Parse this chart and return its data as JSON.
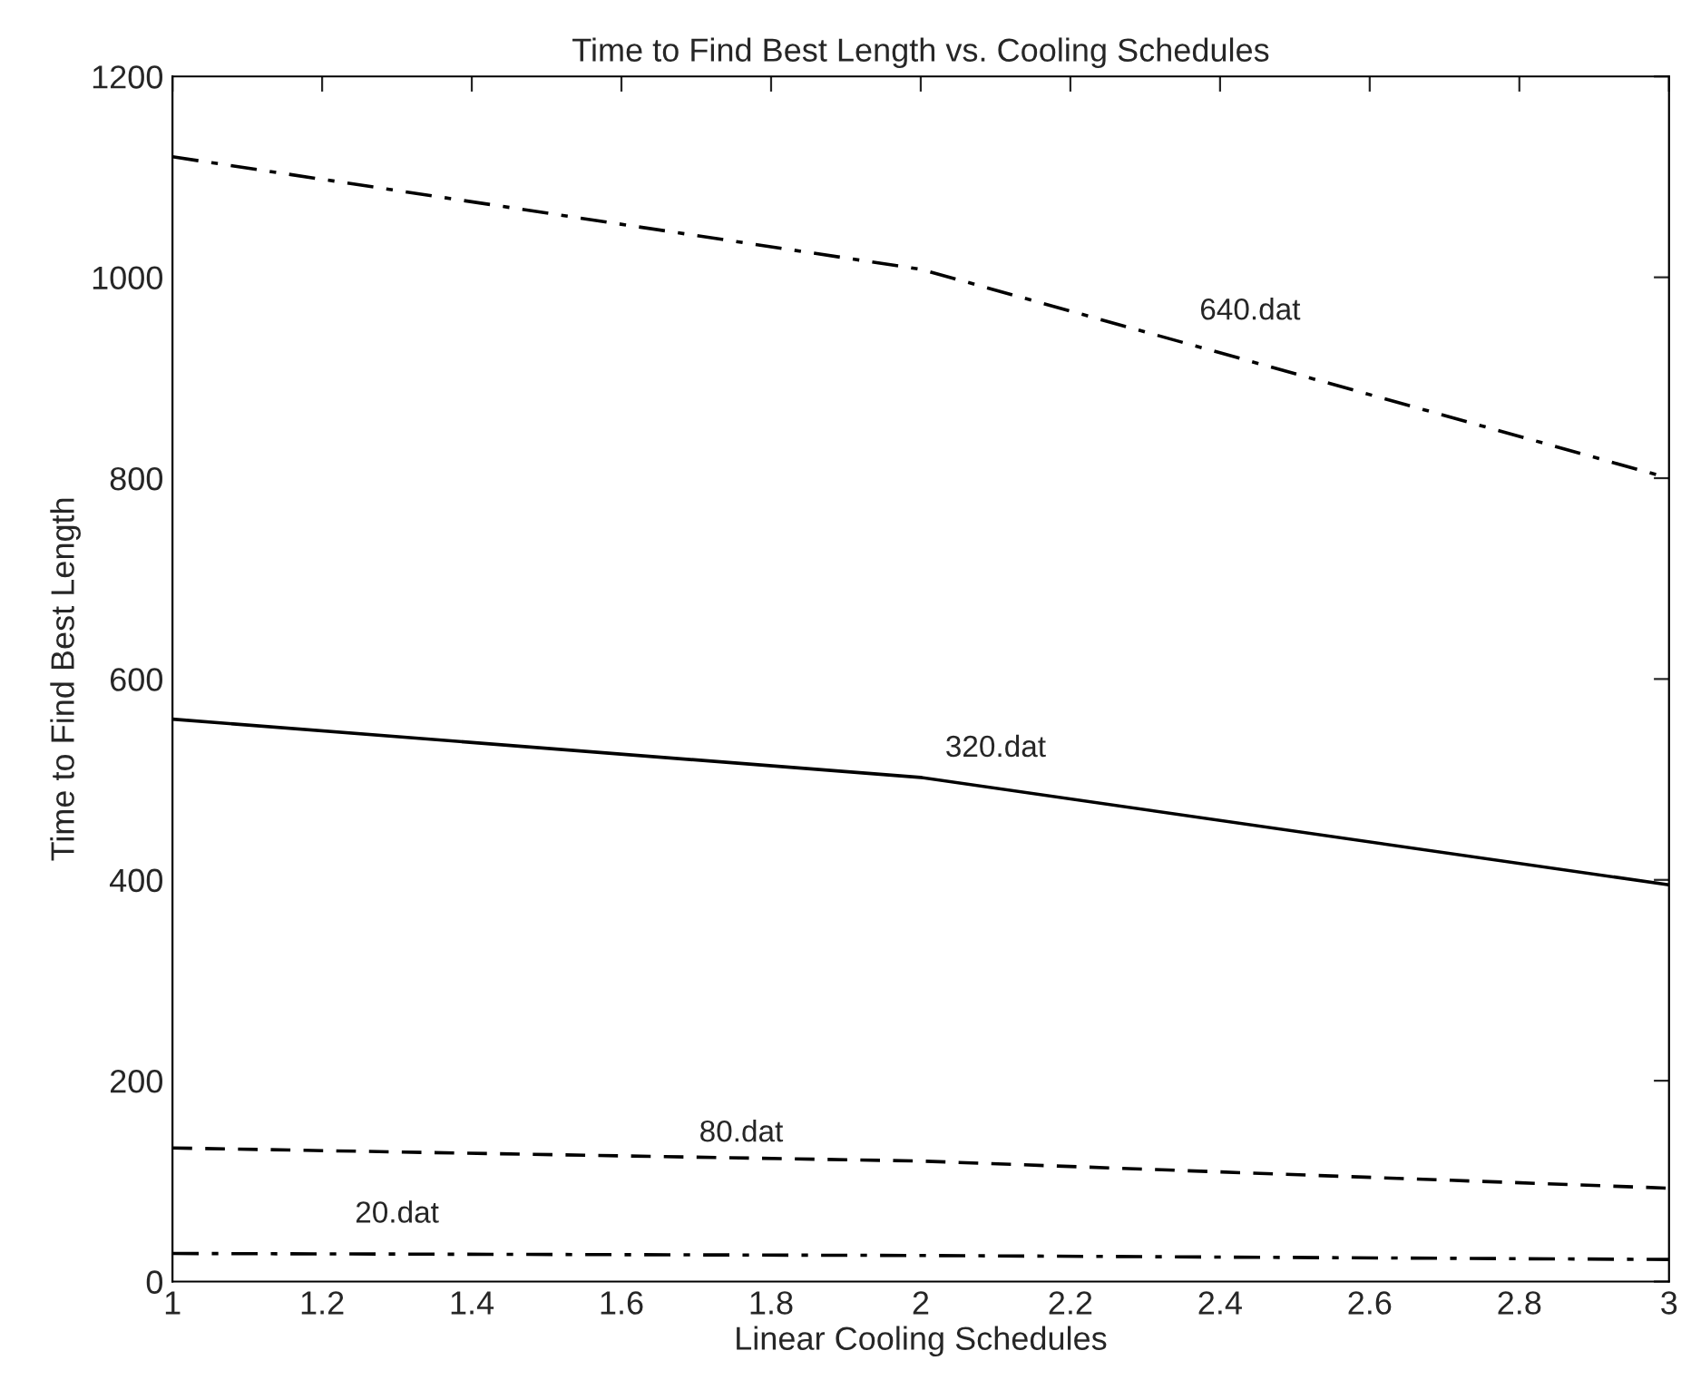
{
  "chart_data": {
    "type": "line",
    "title": "Time to Find Best Length vs. Cooling Schedules",
    "xlabel": "Linear Cooling Schedules",
    "ylabel": "Time to Find Best Length",
    "x": [
      1,
      2,
      3
    ],
    "series": [
      {
        "name": "640.dat",
        "color": "#000000",
        "line_style": "dashdot",
        "values": [
          1120,
          1008,
          800
        ]
      },
      {
        "name": "320.dat",
        "color": "#000000",
        "line_style": "solid",
        "values": [
          560,
          502,
          395
        ]
      },
      {
        "name": "80.dat",
        "color": "#000000",
        "line_style": "dashed",
        "values": [
          133,
          120,
          93
        ]
      },
      {
        "name": "20.dat",
        "color": "#000000",
        "line_style": "dashdot",
        "values": [
          28,
          26,
          22
        ]
      }
    ],
    "xlim": [
      1,
      3
    ],
    "xticks": [
      1,
      1.2,
      1.4,
      1.6,
      1.8,
      2,
      2.2,
      2.4,
      2.6,
      2.8,
      3
    ],
    "ylim": [
      0,
      1200
    ],
    "yticks": [
      0,
      200,
      400,
      600,
      800,
      1000,
      1200
    ],
    "grid": false,
    "legend": false,
    "marker": "none"
  }
}
